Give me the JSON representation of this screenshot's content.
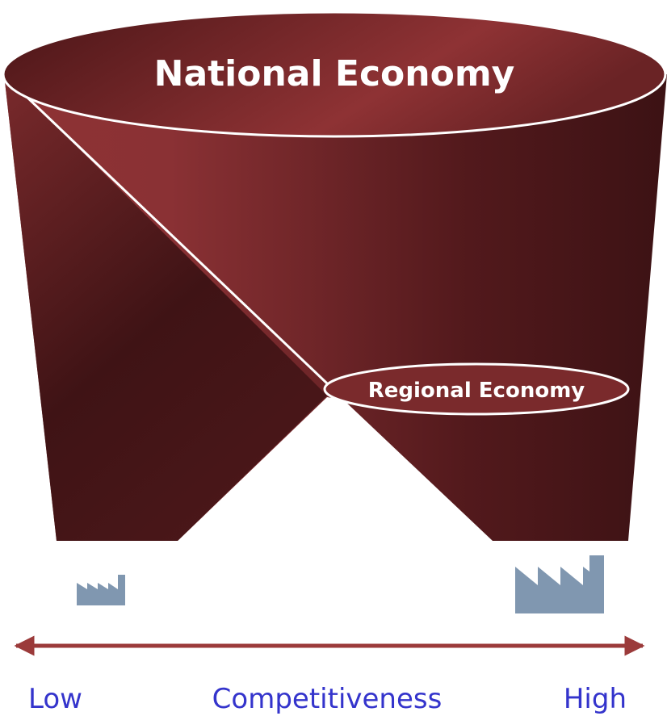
{
  "title": "National Economy",
  "inner_label": "Regional Economy",
  "axis": {
    "low": "Low",
    "label": "Competitiveness",
    "high": "High"
  }
}
